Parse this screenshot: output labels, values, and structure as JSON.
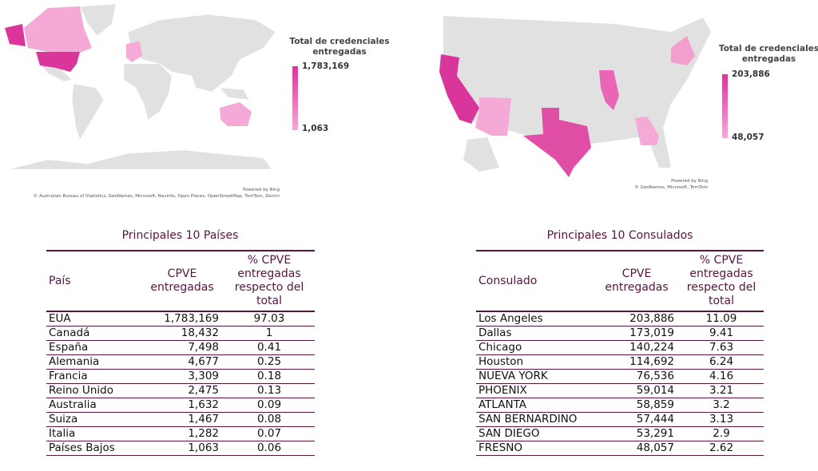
{
  "world_map": {
    "legend_title": "Total de credenciales entregadas",
    "legend_max": "1,783,169",
    "legend_min": "1,063",
    "powered_by": "Powered by Bing",
    "attribution": "© Australian Bureau of Statistics, GeoNames, Microsoft, Navinfo, Open Places, OpenStreetMap, TomTom, Zenrin",
    "colors": {
      "high": "#d9359b",
      "mid": "#e866b5",
      "low": "#f4a9d6",
      "base": "#e1e1e1"
    }
  },
  "us_map": {
    "legend_title": "Total de credenciales entregadas",
    "legend_max": "203,886",
    "legend_min": "48,057",
    "powered_by": "Powered by Bing",
    "attribution": "© GeoNames, Microsoft, TomTom"
  },
  "countries_table": {
    "title": "Principales 10 Países",
    "headers": [
      "País",
      "CPVE entregadas",
      "% CPVE entregadas respecto del total"
    ],
    "rows": [
      [
        "EUA",
        "1,783,169",
        "97.03"
      ],
      [
        "Canadá",
        "18,432",
        "1"
      ],
      [
        "España",
        "7,498",
        "0.41"
      ],
      [
        "Alemania",
        "4,677",
        "0.25"
      ],
      [
        "Francia",
        "3,309",
        "0.18"
      ],
      [
        "Reino Unido",
        "2,475",
        "0.13"
      ],
      [
        "Australia",
        "1,632",
        "0.09"
      ],
      [
        "Suiza",
        "1,467",
        "0.08"
      ],
      [
        "Italia",
        "1,282",
        "0.07"
      ],
      [
        "Países Bajos",
        "1,063",
        "0.06"
      ]
    ]
  },
  "consulates_table": {
    "title": "Principales 10 Consulados",
    "headers": [
      "Consulado",
      "CPVE entregadas",
      "% CPVE entregadas respecto del total"
    ],
    "rows": [
      [
        "Los Angeles",
        "203,886",
        "11.09"
      ],
      [
        "Dallas",
        "173,019",
        "9.41"
      ],
      [
        "Chicago",
        "140,224",
        "7.63"
      ],
      [
        "Houston",
        "114,692",
        "6.24"
      ],
      [
        "NUEVA YORK",
        "76,536",
        "4.16"
      ],
      [
        "PHOENIX",
        "59,014",
        "3.21"
      ],
      [
        "ATLANTA",
        "58,859",
        "3.2"
      ],
      [
        "SAN BERNARDINO",
        "57,444",
        "3.13"
      ],
      [
        "SAN DIEGO",
        "53,291",
        "2.9"
      ],
      [
        "FRESNO",
        "48,057",
        "2.62"
      ]
    ]
  }
}
